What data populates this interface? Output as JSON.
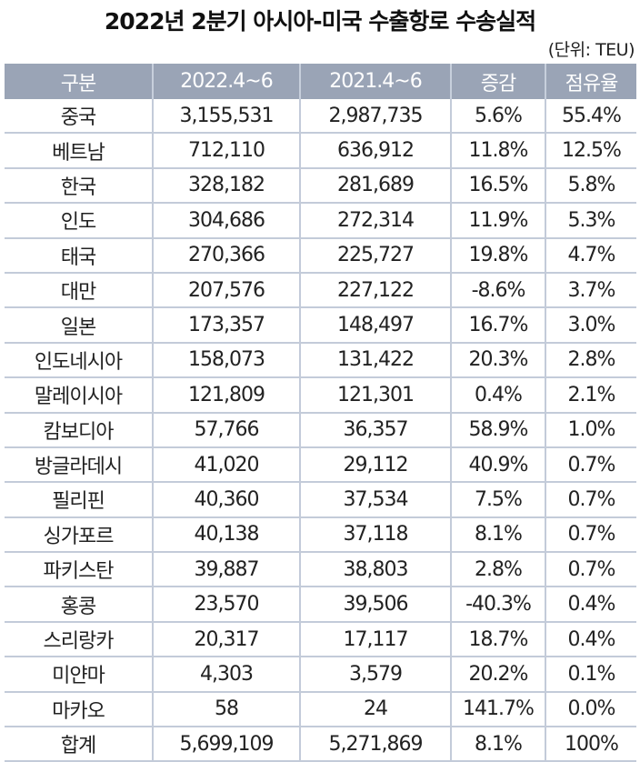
{
  "title": "2022년 2분기 아시아-미국 수출항로 수송실적",
  "unit": "(단위: TEU)",
  "colors": {
    "header_bg": "#9aa4b6",
    "header_text": "#ffffff",
    "grid": "#c3cbd9"
  },
  "table": {
    "headers": [
      "구분",
      "2022.4~6",
      "2021.4~6",
      "증감",
      "점유율"
    ],
    "rows": [
      [
        "중국",
        "3,155,531",
        "2,987,735",
        "5.6%",
        "55.4%"
      ],
      [
        "베트남",
        "712,110",
        "636,912",
        "11.8%",
        "12.5%"
      ],
      [
        "한국",
        "328,182",
        "281,689",
        "16.5%",
        "5.8%"
      ],
      [
        "인도",
        "304,686",
        "272,314",
        "11.9%",
        "5.3%"
      ],
      [
        "태국",
        "270,366",
        "225,727",
        "19.8%",
        "4.7%"
      ],
      [
        "대만",
        "207,576",
        "227,122",
        "-8.6%",
        "3.7%"
      ],
      [
        "일본",
        "173,357",
        "148,497",
        "16.7%",
        "3.0%"
      ],
      [
        "인도네시아",
        "158,073",
        "131,422",
        "20.3%",
        "2.8%"
      ],
      [
        "말레이시아",
        "121,809",
        "121,301",
        "0.4%",
        "2.1%"
      ],
      [
        "캄보디아",
        "57,766",
        "36,357",
        "58.9%",
        "1.0%"
      ],
      [
        "방글라데시",
        "41,020",
        "29,112",
        "40.9%",
        "0.7%"
      ],
      [
        "필리핀",
        "40,360",
        "37,534",
        "7.5%",
        "0.7%"
      ],
      [
        "싱가포르",
        "40,138",
        "37,118",
        "8.1%",
        "0.7%"
      ],
      [
        "파키스탄",
        "39,887",
        "38,803",
        "2.8%",
        "0.7%"
      ],
      [
        "홍콩",
        "23,570",
        "39,506",
        "-40.3%",
        "0.4%"
      ],
      [
        "스리랑카",
        "20,317",
        "17,117",
        "18.7%",
        "0.4%"
      ],
      [
        "미얀마",
        "4,303",
        "3,579",
        "20.2%",
        "0.1%"
      ],
      [
        "마카오",
        "58",
        "24",
        "141.7%",
        "0.0%"
      ],
      [
        "합계",
        "5,699,109",
        "5,271,869",
        "8.1%",
        "100%"
      ]
    ]
  }
}
